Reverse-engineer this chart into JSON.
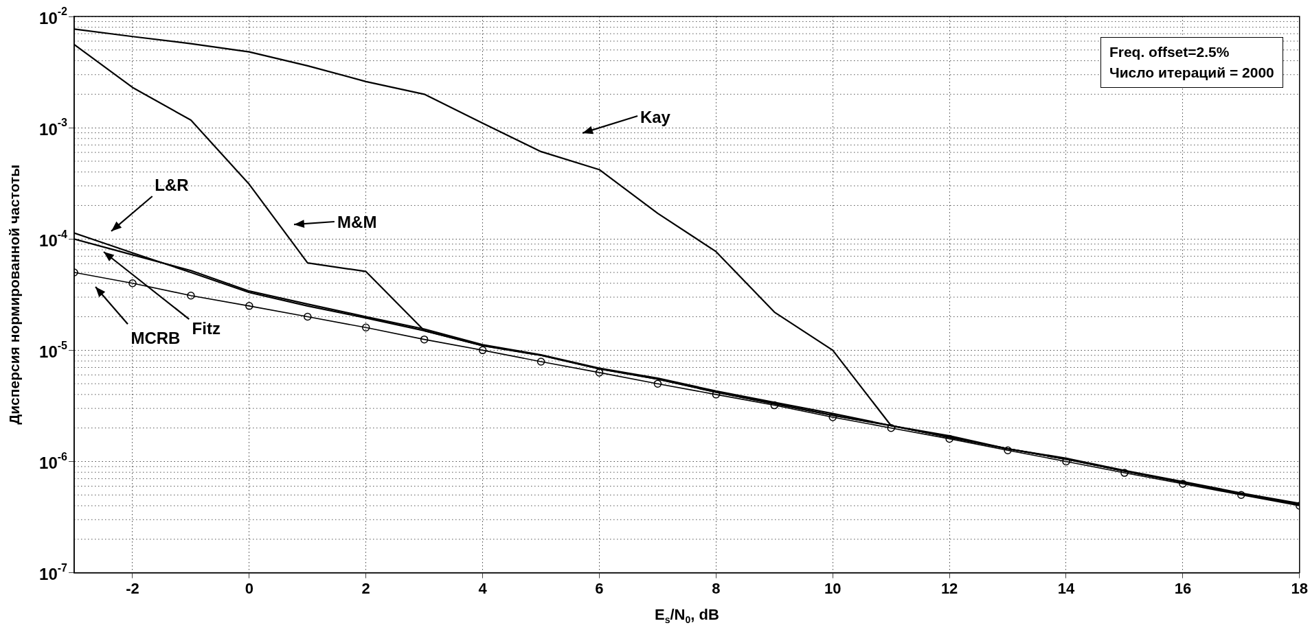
{
  "chart_data": {
    "type": "line",
    "ylabel": "Дисперсия нормированной частоты",
    "xlabel": "E$_{s}$/N$_{0}$, dB",
    "log": "y",
    "grid": true,
    "legend": false,
    "xlim": [
      -3,
      18
    ],
    "xticks": [
      -2,
      0,
      2,
      4,
      6,
      8,
      10,
      12,
      14,
      16,
      18
    ],
    "ylim": [
      1e-07,
      0.01
    ],
    "yticks": [
      {
        "value": 1e-07,
        "label": "10$^{-7}$"
      },
      {
        "value": 1e-06,
        "label": "10$^{-6}$"
      },
      {
        "value": 1e-05,
        "label": "10$^{-5}$"
      },
      {
        "value": 0.0001,
        "label": "10$^{-4}$"
      },
      {
        "value": 0.001,
        "label": "10$^{-3}$"
      },
      {
        "value": 0.01,
        "label": "10$^{-2}$"
      }
    ],
    "x": [
      -3,
      -2,
      -1,
      0,
      1,
      2,
      3,
      4,
      5,
      6,
      7,
      8,
      9,
      10,
      11,
      12,
      13,
      14,
      15,
      16,
      17,
      18
    ],
    "series": [
      {
        "color": "#000000",
        "marker": "none",
        "values": [
          0.0077,
          0.0066,
          0.0057,
          0.0048,
          0.0036,
          0.0026,
          0.002,
          0.0011,
          0.00061,
          0.00042,
          0.00017,
          7.7e-05,
          2.2e-05,
          1e-05,
          2.1e-06,
          1.65e-06,
          1.3e-06,
          1.05e-06,
          8.2e-07,
          6.5e-07,
          5.1e-07,
          4.1e-07
        ]
      },
      {
        "color": "#000000",
        "marker": "none",
        "values": [
          0.0056,
          0.0023,
          0.00117,
          0.00031,
          6.1e-05,
          5.1e-05,
          1.5e-05,
          1.1e-05,
          9e-06,
          6.8e-06,
          5.5e-06,
          4.2e-06,
          3.3e-06,
          2.6e-06,
          2.1e-06,
          1.65e-06,
          1.3e-06,
          1.05e-06,
          8.2e-07,
          6.5e-07,
          5.1e-07,
          4.1e-07
        ]
      },
      {
        "color": "#000000",
        "marker": "none",
        "values": [
          0.000113,
          7.5e-05,
          5e-05,
          3.3e-05,
          2.5e-05,
          1.95e-05,
          1.5e-05,
          1.1e-05,
          9e-06,
          6.8e-06,
          5.5e-06,
          4.2e-06,
          3.3e-06,
          2.6e-06,
          2.1e-06,
          1.65e-06,
          1.3e-06,
          1.05e-06,
          8.2e-07,
          6.5e-07,
          5.1e-07,
          4.1e-07
        ]
      },
      {
        "color": "#000000",
        "marker": "none",
        "values": [
          0.0001,
          7.2e-05,
          5.2e-05,
          3.4e-05,
          2.6e-05,
          2e-05,
          1.55e-05,
          1.12e-05,
          9.1e-06,
          6.9e-06,
          5.6e-06,
          4.3e-06,
          3.4e-06,
          2.7e-06,
          2.1e-06,
          1.7e-06,
          1.3e-06,
          1.07e-06,
          8.3e-07,
          6.6e-07,
          5.2e-07,
          4.2e-07
        ]
      },
      {
        "color": "#000000",
        "marker": "circle",
        "values": [
          5e-05,
          4e-05,
          3.1e-05,
          2.5e-05,
          2e-05,
          1.6e-05,
          1.25e-05,
          1e-05,
          7.9e-06,
          6.3e-06,
          5e-06,
          4e-06,
          3.2e-06,
          2.5e-06,
          2e-06,
          1.6e-06,
          1.26e-06,
          1e-06,
          7.9e-07,
          6.3e-07,
          5e-07,
          4e-07
        ]
      }
    ],
    "annotations": [
      "Kay",
      "M&M",
      "L&R",
      "Fitz",
      "MCRB",
      "Freq. offset=2.5%",
      "Число итераций = 2000"
    ]
  }
}
